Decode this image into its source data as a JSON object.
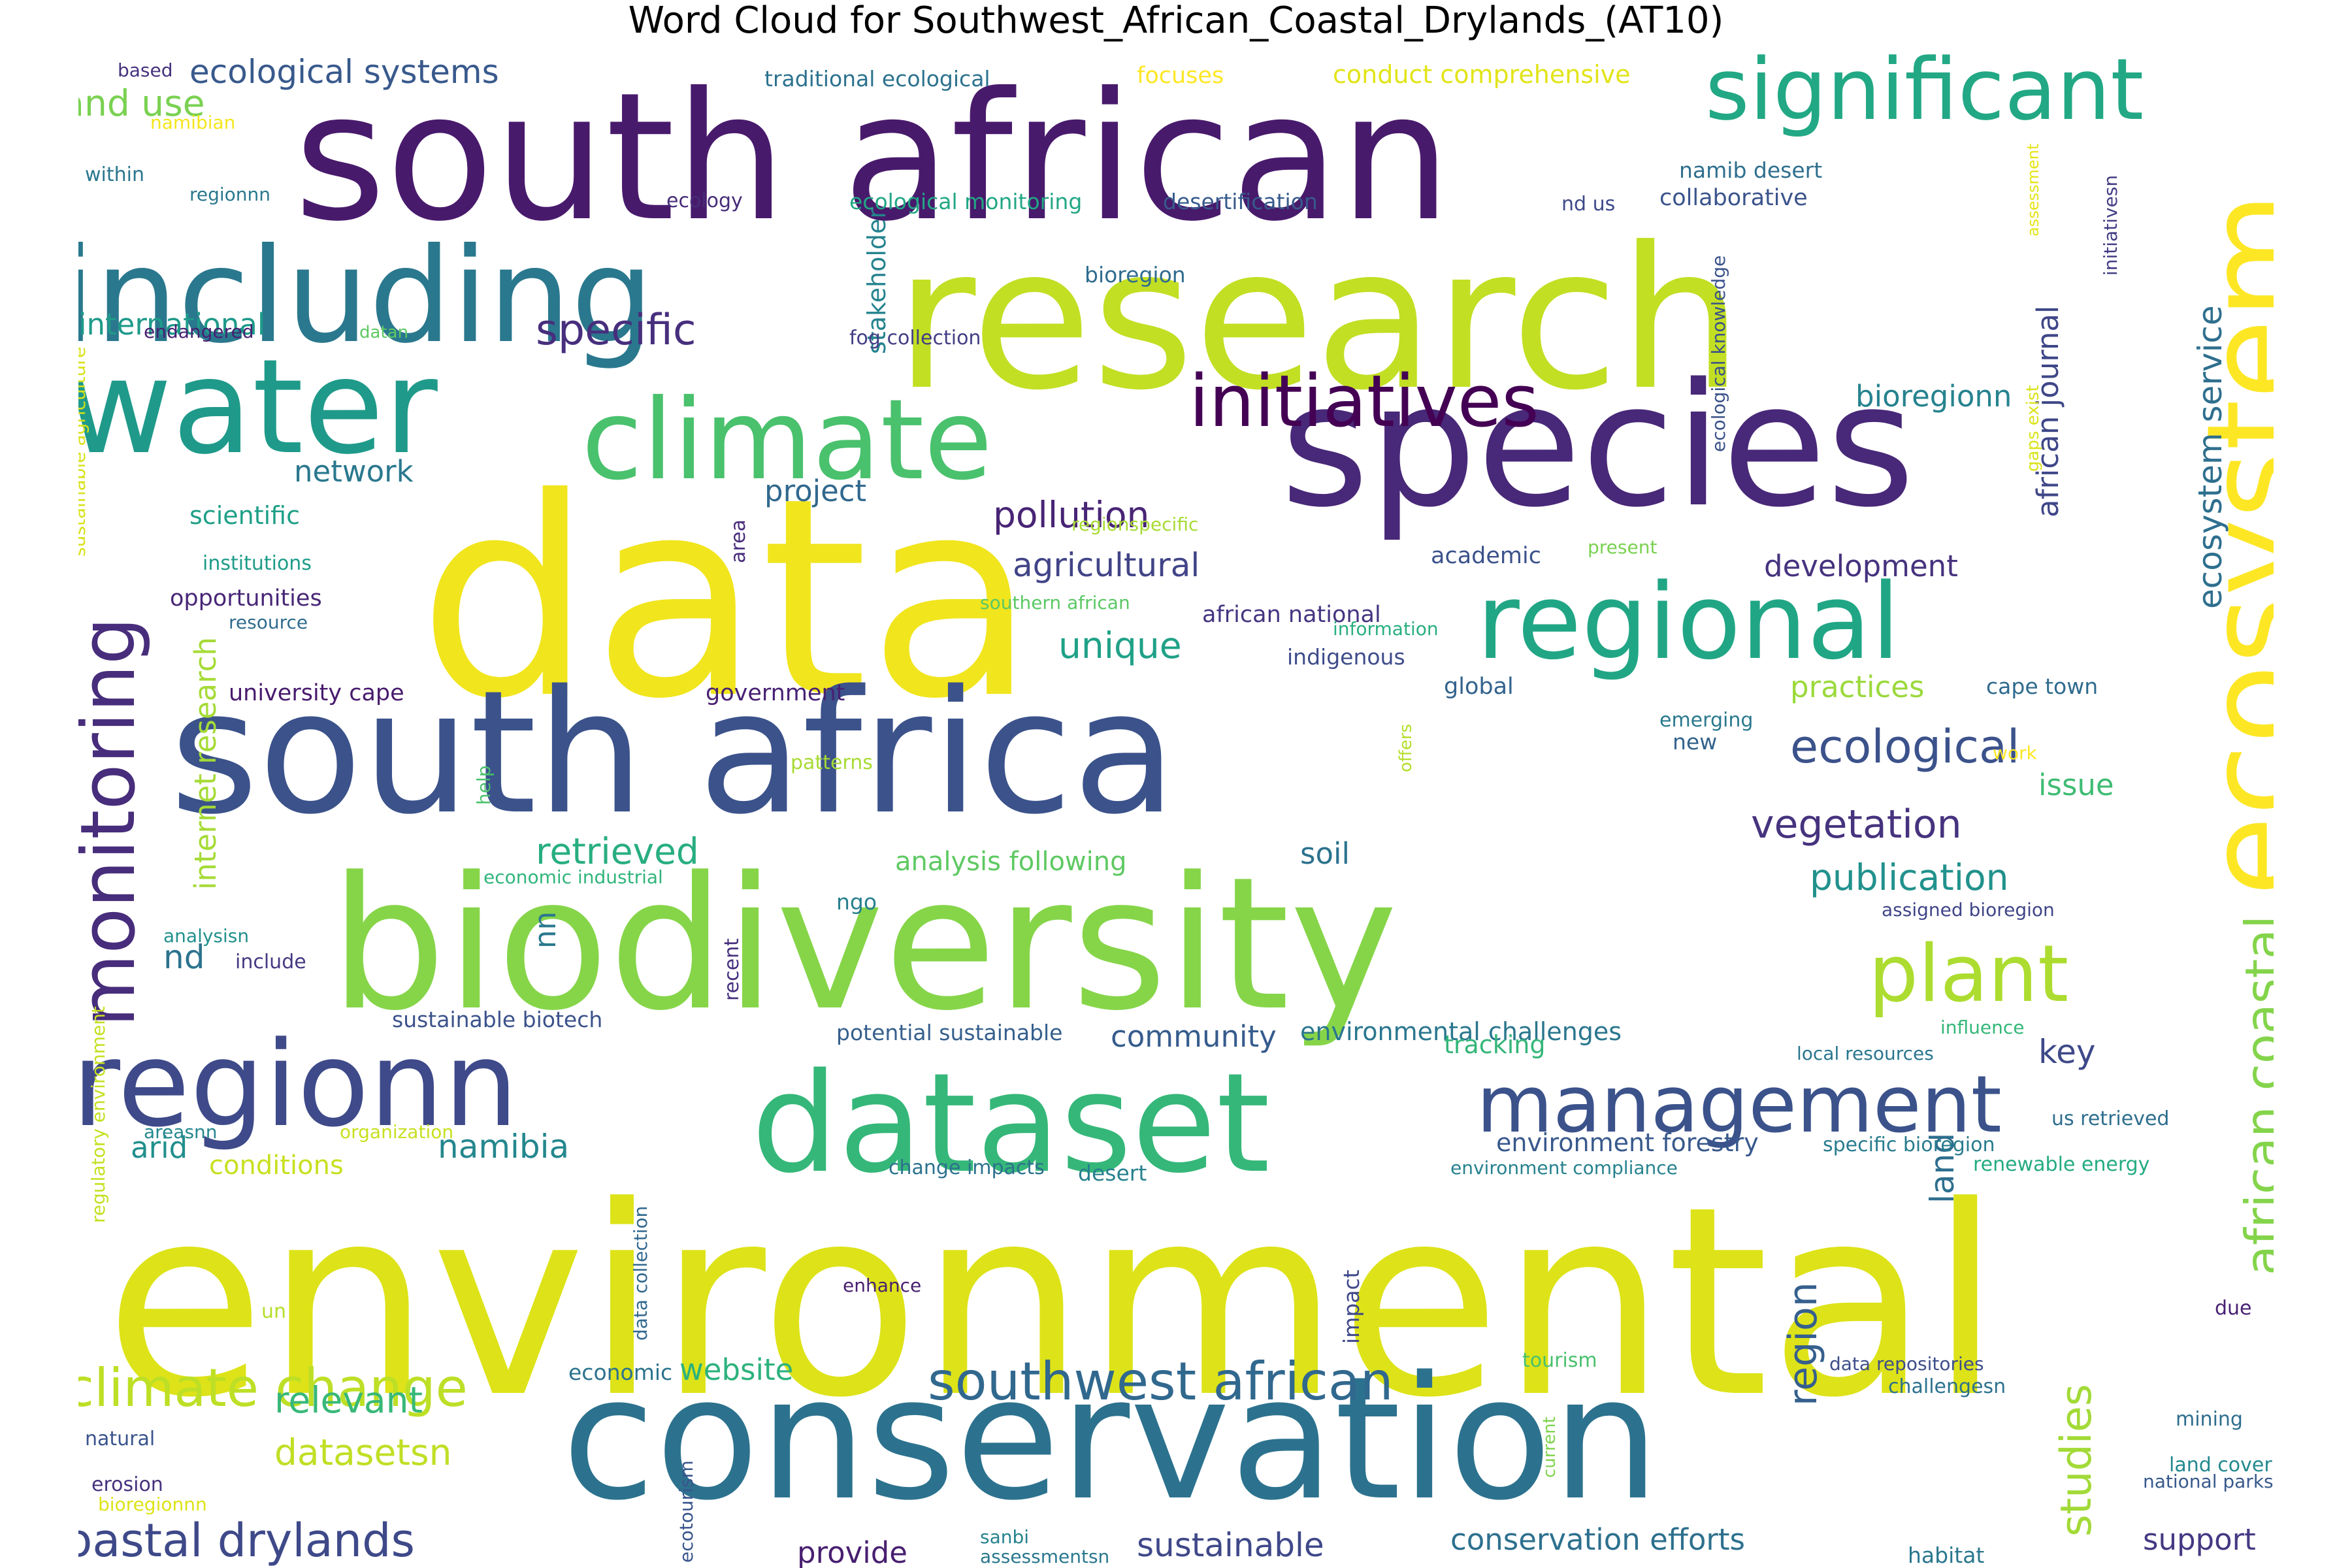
{
  "title": "Word Cloud for Southwest_African_Coastal_Drylands_(AT10)",
  "colormap": "viridis",
  "background": "#ffffff",
  "words": [
    {
      "text": "environmental",
      "color": "#dde318"
    },
    {
      "text": "south african",
      "color": "#481a6c"
    },
    {
      "text": "research",
      "color": "#c2df23"
    },
    {
      "text": "data",
      "color": "#f1e51d"
    },
    {
      "text": "biodiversity",
      "color": "#86d549"
    },
    {
      "text": "south africa",
      "color": "#3b528b"
    },
    {
      "text": "conservation",
      "color": "#2c728e"
    },
    {
      "text": "species",
      "color": "#482878"
    },
    {
      "text": "including",
      "color": "#2a788e"
    },
    {
      "text": "water",
      "color": "#1f9a8a"
    },
    {
      "text": "ecosystem",
      "color": "#fde725"
    },
    {
      "text": "dataset",
      "color": "#35b779"
    },
    {
      "text": "regionn",
      "color": "#3e4a89"
    },
    {
      "text": "climate",
      "color": "#4ac16d"
    },
    {
      "text": "significant",
      "color": "#22a884"
    },
    {
      "text": "regional",
      "color": "#21a685"
    },
    {
      "text": "initiatives",
      "color": "#440154"
    },
    {
      "text": "management",
      "color": "#3b528b"
    },
    {
      "text": "monitoring",
      "color": "#472d7b"
    },
    {
      "text": "plant",
      "color": "#addc30"
    },
    {
      "text": "southwest african",
      "color": "#31688e"
    },
    {
      "text": "climate change",
      "color": "#bddf26"
    },
    {
      "text": "coastal drylands",
      "color": "#3e4989"
    },
    {
      "text": "african coastal",
      "color": "#84d44b"
    },
    {
      "text": "ecosystem service",
      "color": "#2e6f8e"
    },
    {
      "text": "ecological",
      "color": "#3b528b"
    },
    {
      "text": "vegetation",
      "color": "#46337e"
    },
    {
      "text": "publication",
      "color": "#21918c"
    },
    {
      "text": "region",
      "color": "#355f8d"
    },
    {
      "text": "studies",
      "color": "#a2da37"
    },
    {
      "text": "pollution",
      "color": "#482475"
    },
    {
      "text": "specific",
      "color": "#472f7d"
    },
    {
      "text": "land use",
      "color": "#7ad151"
    },
    {
      "text": "ecological systems",
      "color": "#38598c"
    },
    {
      "text": "retrieved",
      "color": "#28ae80"
    },
    {
      "text": "agricultural",
      "color": "#414487"
    },
    {
      "text": "unique",
      "color": "#1fa187"
    },
    {
      "text": "african journal",
      "color": "#3f4788"
    },
    {
      "text": "bioregionn",
      "color": "#26828e"
    },
    {
      "text": "development",
      "color": "#46327e"
    },
    {
      "text": "analysis following",
      "color": "#5ec962"
    },
    {
      "text": "practices",
      "color": "#9bd93c"
    },
    {
      "text": "datasetsn",
      "color": "#c0df25"
    },
    {
      "text": "relevant",
      "color": "#37b878"
    },
    {
      "text": "namibia",
      "color": "#24878e"
    },
    {
      "text": "community",
      "color": "#365c8d"
    },
    {
      "text": "network",
      "color": "#2a788e"
    },
    {
      "text": "project",
      "color": "#31688e"
    },
    {
      "text": "international",
      "color": "#1f9a8a"
    },
    {
      "text": "sustainable",
      "color": "#3f4889"
    },
    {
      "text": "conservation efforts",
      "color": "#2d708e"
    },
    {
      "text": "support",
      "color": "#443983"
    },
    {
      "text": "key",
      "color": "#3e4989"
    },
    {
      "text": "arid",
      "color": "#218f8d"
    },
    {
      "text": "website",
      "color": "#2db27d"
    },
    {
      "text": "provide",
      "color": "#481f70"
    },
    {
      "text": "soil",
      "color": "#2c728e"
    },
    {
      "text": "land",
      "color": "#2e6e8e"
    },
    {
      "text": "nd",
      "color": "#2c738e"
    },
    {
      "text": "issue",
      "color": "#3fbc73"
    },
    {
      "text": "internet research",
      "color": "#a5db36"
    },
    {
      "text": "stakeholder",
      "color": "#25838e"
    },
    {
      "text": "environmental challenges",
      "color": "#2a768e"
    },
    {
      "text": "environment forestry",
      "color": "#38598c"
    },
    {
      "text": "tracking",
      "color": "#34b679"
    },
    {
      "text": "nn",
      "color": "#2a788e"
    },
    {
      "text": "scientific",
      "color": "#1fa088"
    },
    {
      "text": "university cape",
      "color": "#481b6d"
    },
    {
      "text": "government",
      "color": "#482173"
    },
    {
      "text": "opportunities",
      "color": "#482677"
    },
    {
      "text": "academic",
      "color": "#3b528b"
    },
    {
      "text": "african national",
      "color": "#453581"
    },
    {
      "text": "indigenous",
      "color": "#3e4c8a"
    },
    {
      "text": "global",
      "color": "#33638d"
    },
    {
      "text": "cape town",
      "color": "#2f6b8e"
    },
    {
      "text": "conditions",
      "color": "#c8e020"
    },
    {
      "text": "retrieved",
      "color": "#000000"
    },
    {
      "text": "collaborative",
      "color": "#3a548c"
    },
    {
      "text": "namib desert",
      "color": "#2e6f8e"
    },
    {
      "text": "desertification",
      "color": "#375a8c"
    },
    {
      "text": "ecological monitoring",
      "color": "#22a785"
    },
    {
      "text": "conduct comprehensive",
      "color": "#e2e418"
    },
    {
      "text": "focuses",
      "color": "#fde725"
    },
    {
      "text": "traditional ecological",
      "color": "#2c728e"
    },
    {
      "text": "based",
      "color": "#46327e"
    },
    {
      "text": "namibian",
      "color": "#f4e61e"
    },
    {
      "text": "within",
      "color": "#2a768e"
    },
    {
      "text": "regionnn",
      "color": "#2a788e"
    },
    {
      "text": "ecology",
      "color": "#472c7a"
    },
    {
      "text": "nd us",
      "color": "#3e4989"
    },
    {
      "text": "endangered",
      "color": "#482071"
    },
    {
      "text": "datan",
      "color": "#5ec962"
    },
    {
      "text": "bioregion",
      "color": "#2f6c8e"
    },
    {
      "text": "fog collection",
      "color": "#433e85"
    },
    {
      "text": "ecological knowledge",
      "color": "#3b528b"
    },
    {
      "text": "sustainable agriculture",
      "color": "#d8e219"
    },
    {
      "text": "regionspecific",
      "color": "#a8db34"
    },
    {
      "text": "institutions",
      "color": "#1e9c89"
    },
    {
      "text": "resource",
      "color": "#2f6c8e"
    },
    {
      "text": "southern african",
      "color": "#5ac864"
    },
    {
      "text": "information",
      "color": "#29af7f"
    },
    {
      "text": "present",
      "color": "#7ad151"
    },
    {
      "text": "area",
      "color": "#472c7a"
    },
    {
      "text": "gaps exist",
      "color": "#dae319"
    },
    {
      "text": "assessment",
      "color": "#e5e419"
    },
    {
      "text": "initiativesn",
      "color": "#433d84"
    },
    {
      "text": "emerging",
      "color": "#29798e"
    },
    {
      "text": "new",
      "color": "#33638d"
    },
    {
      "text": "work",
      "color": "#fde725"
    },
    {
      "text": "patterns",
      "color": "#a8db34"
    },
    {
      "text": "offers",
      "color": "#b5de2b"
    },
    {
      "text": "help",
      "color": "#4ac16d"
    },
    {
      "text": "ngo",
      "color": "#277f8e"
    },
    {
      "text": "economic industrial",
      "color": "#31b57b"
    },
    {
      "text": "recent",
      "color": "#46307e"
    },
    {
      "text": "analysisn",
      "color": "#21918c"
    },
    {
      "text": "include",
      "color": "#443a83"
    },
    {
      "text": "assigned bioregion",
      "color": "#404588"
    },
    {
      "text": "sustainable biotech",
      "color": "#3b528b"
    },
    {
      "text": "potential sustainable",
      "color": "#355f8d"
    },
    {
      "text": "influence",
      "color": "#35b779"
    },
    {
      "text": "local resources",
      "color": "#2a768e"
    },
    {
      "text": "regulatory environment",
      "color": "#c5e021"
    },
    {
      "text": "us retrieved",
      "color": "#2e6e8e"
    },
    {
      "text": "specific bioregion",
      "color": "#287c8e"
    },
    {
      "text": "renewable energy",
      "color": "#25ab82"
    },
    {
      "text": "areasnn",
      "color": "#24878e"
    },
    {
      "text": "organization",
      "color": "#c8e020"
    },
    {
      "text": "change impacts",
      "color": "#2c728e"
    },
    {
      "text": "desert",
      "color": "#26818e"
    },
    {
      "text": "environment compliance",
      "color": "#26828e"
    },
    {
      "text": "data collection",
      "color": "#31688e"
    },
    {
      "text": "enhance",
      "color": "#481f70"
    },
    {
      "text": "impact",
      "color": "#3f4889"
    },
    {
      "text": "due",
      "color": "#482173"
    },
    {
      "text": "un",
      "color": "#b5de2b"
    },
    {
      "text": "economic",
      "color": "#2c728e"
    },
    {
      "text": "tourism",
      "color": "#4ac16d"
    },
    {
      "text": "data repositories",
      "color": "#3d4e8a"
    },
    {
      "text": "challengesn",
      "color": "#2c728e"
    },
    {
      "text": "mining",
      "color": "#2e6e8e"
    },
    {
      "text": "land cover",
      "color": "#23898e"
    },
    {
      "text": "national parks",
      "color": "#38598c"
    },
    {
      "text": "natural",
      "color": "#3a548c"
    },
    {
      "text": "erosion",
      "color": "#46327e"
    },
    {
      "text": "bioregionnn",
      "color": "#dde318"
    },
    {
      "text": "ecotourism",
      "color": "#39558c"
    },
    {
      "text": "current",
      "color": "#7fd34e"
    },
    {
      "text": "sanbi",
      "color": "#26828e"
    },
    {
      "text": "assessmentsn",
      "color": "#2a788e"
    },
    {
      "text": "habitat",
      "color": "#2a778e"
    }
  ]
}
